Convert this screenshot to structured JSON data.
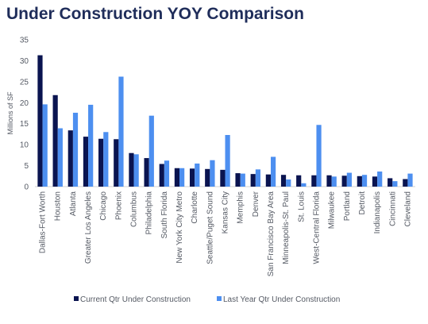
{
  "chart_data": {
    "type": "bar",
    "title": "Under Construction YOY Comparison",
    "xlabel": "",
    "ylabel": "Millions of SF",
    "ylim": [
      0,
      35
    ],
    "yticks": [
      0,
      5,
      10,
      15,
      20,
      25,
      30,
      35
    ],
    "grid": false,
    "legend": "bottom",
    "categories": [
      "Dallas-Fort Worth",
      "Houston",
      "Atlanta",
      "Greater Los Angeles",
      "Chicago",
      "Phoenix",
      "Columbus",
      "Philadelphia",
      "South Florida",
      "New York City Metro",
      "Charlotte",
      "Seattle/Puget Sound",
      "Kansas City",
      "Memphis",
      "Denver",
      "San Francisco Bay Area",
      "Minneapolis-St. Paul",
      "St. Louis",
      "West-Central Florida",
      "Milwaukee",
      "Portland",
      "Detroit",
      "Indianapolis",
      "Cincinnati",
      "Cleveland"
    ],
    "series": [
      {
        "name": "Current Qtr Under Construction",
        "color": "#0a1450",
        "values": [
          31.3,
          21.8,
          13.4,
          11.9,
          11.4,
          11.3,
          8.0,
          6.8,
          5.4,
          4.4,
          4.3,
          4.2,
          4.0,
          3.2,
          3.0,
          2.9,
          2.8,
          2.7,
          2.7,
          2.7,
          2.6,
          2.5,
          2.4,
          2.0,
          1.8
        ]
      },
      {
        "name": "Last Year Qtr Under Construction",
        "color": "#4d8ff0",
        "values": [
          19.6,
          13.9,
          17.6,
          19.5,
          13.0,
          26.2,
          7.7,
          16.9,
          6.2,
          4.4,
          5.5,
          6.3,
          12.3,
          3.1,
          4.1,
          7.1,
          1.7,
          0.8,
          14.7,
          2.4,
          3.3,
          2.8,
          3.6,
          1.3,
          3.1
        ]
      }
    ]
  }
}
